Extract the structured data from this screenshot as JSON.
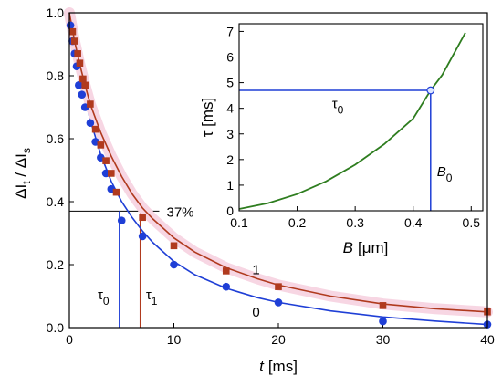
{
  "chart_data": [
    {
      "type": "scatter",
      "xlabel_main": "t",
      "xlabel_unit": "[ms]",
      "ylabel_parts": [
        "ΔI",
        "t",
        " / ΔI",
        "s"
      ],
      "xlim": [
        0,
        40
      ],
      "ylim": [
        0,
        1.0
      ],
      "xticks": [
        0,
        10,
        20,
        30,
        40
      ],
      "yticks": [
        0.0,
        0.2,
        0.4,
        0.6,
        0.8,
        1.0
      ],
      "threshold": {
        "y": 0.37,
        "label": "37%"
      },
      "markers": [
        {
          "name_main": "τ",
          "name_sub": "0",
          "x": 4.8,
          "color": "#1f3fd6"
        },
        {
          "name_main": "τ",
          "name_sub": "1",
          "x": 6.8,
          "color": "#b03a1e"
        }
      ],
      "series": [
        {
          "name": "0",
          "color": "#1f3fd6",
          "marker": "circle",
          "points": [
            [
              0.1,
              0.96
            ],
            [
              0.3,
              0.91
            ],
            [
              0.5,
              0.87
            ],
            [
              0.7,
              0.83
            ],
            [
              0.9,
              0.77
            ],
            [
              1.2,
              0.74
            ],
            [
              1.5,
              0.7
            ],
            [
              2.0,
              0.65
            ],
            [
              2.5,
              0.59
            ],
            [
              3.0,
              0.54
            ],
            [
              3.5,
              0.49
            ],
            [
              4.0,
              0.44
            ],
            [
              5.0,
              0.34
            ],
            [
              7.0,
              0.29
            ],
            [
              10.0,
              0.2
            ],
            [
              15.0,
              0.13
            ],
            [
              20.0,
              0.08
            ],
            [
              30.0,
              0.02
            ],
            [
              40.0,
              0.01
            ]
          ],
          "fit": [
            [
              0,
              1.0
            ],
            [
              0.5,
              0.89
            ],
            [
              1,
              0.8
            ],
            [
              1.5,
              0.725
            ],
            [
              2,
              0.66
            ],
            [
              3,
              0.55
            ],
            [
              4,
              0.465
            ],
            [
              5,
              0.4
            ],
            [
              6,
              0.35
            ],
            [
              7,
              0.307
            ],
            [
              8,
              0.27
            ],
            [
              10,
              0.21
            ],
            [
              12,
              0.168
            ],
            [
              15,
              0.125
            ],
            [
              18,
              0.095
            ],
            [
              20,
              0.08
            ],
            [
              25,
              0.053
            ],
            [
              30,
              0.034
            ],
            [
              35,
              0.021
            ],
            [
              40,
              0.01
            ]
          ]
        },
        {
          "name": "1",
          "color": "#b03a1e",
          "marker": "square",
          "points": [
            [
              0.3,
              0.94
            ],
            [
              0.5,
              0.91
            ],
            [
              0.8,
              0.87
            ],
            [
              1.0,
              0.84
            ],
            [
              1.3,
              0.79
            ],
            [
              1.5,
              0.77
            ],
            [
              2.0,
              0.71
            ],
            [
              2.5,
              0.63
            ],
            [
              3.0,
              0.58
            ],
            [
              3.5,
              0.53
            ],
            [
              4.0,
              0.49
            ],
            [
              4.5,
              0.43
            ],
            [
              7.0,
              0.35
            ],
            [
              10.0,
              0.26
            ],
            [
              15.0,
              0.18
            ],
            [
              20.0,
              0.13
            ],
            [
              30.0,
              0.07
            ],
            [
              40.0,
              0.05
            ]
          ],
          "fit": [
            [
              0,
              1.0
            ],
            [
              0.5,
              0.91
            ],
            [
              1,
              0.835
            ],
            [
              1.5,
              0.77
            ],
            [
              2,
              0.71
            ],
            [
              3,
              0.62
            ],
            [
              4,
              0.545
            ],
            [
              5,
              0.48
            ],
            [
              6,
              0.425
            ],
            [
              7,
              0.38
            ],
            [
              8,
              0.345
            ],
            [
              10,
              0.285
            ],
            [
              12,
              0.24
            ],
            [
              15,
              0.19
            ],
            [
              18,
              0.155
            ],
            [
              20,
              0.135
            ],
            [
              25,
              0.1
            ],
            [
              30,
              0.075
            ],
            [
              35,
              0.06
            ],
            [
              40,
              0.05
            ]
          ]
        }
      ]
    },
    {
      "type": "line",
      "xlabel_main": "B",
      "xlabel_unit": "[μm]",
      "ylabel": "τ [ms]",
      "xlim": [
        0.1,
        0.52
      ],
      "ylim": [
        0,
        7.3
      ],
      "xticks": [
        0.1,
        0.2,
        0.3,
        0.4,
        0.5
      ],
      "yticks": [
        0,
        1,
        2,
        3,
        4,
        5,
        6,
        7
      ],
      "color": "#2e7d1f",
      "curve": [
        [
          0.1,
          0.07
        ],
        [
          0.15,
          0.3
        ],
        [
          0.2,
          0.65
        ],
        [
          0.25,
          1.15
        ],
        [
          0.3,
          1.8
        ],
        [
          0.35,
          2.6
        ],
        [
          0.4,
          3.6
        ],
        [
          0.43,
          4.7
        ],
        [
          0.45,
          5.3
        ],
        [
          0.49,
          6.95
        ]
      ],
      "marker_point": {
        "x": 0.43,
        "y": 4.7
      },
      "hline_label": {
        "main": "τ",
        "sub": "0"
      },
      "vline_label": {
        "main": "B",
        "sub": "0"
      },
      "guide_color": "#1f3fd6"
    }
  ]
}
